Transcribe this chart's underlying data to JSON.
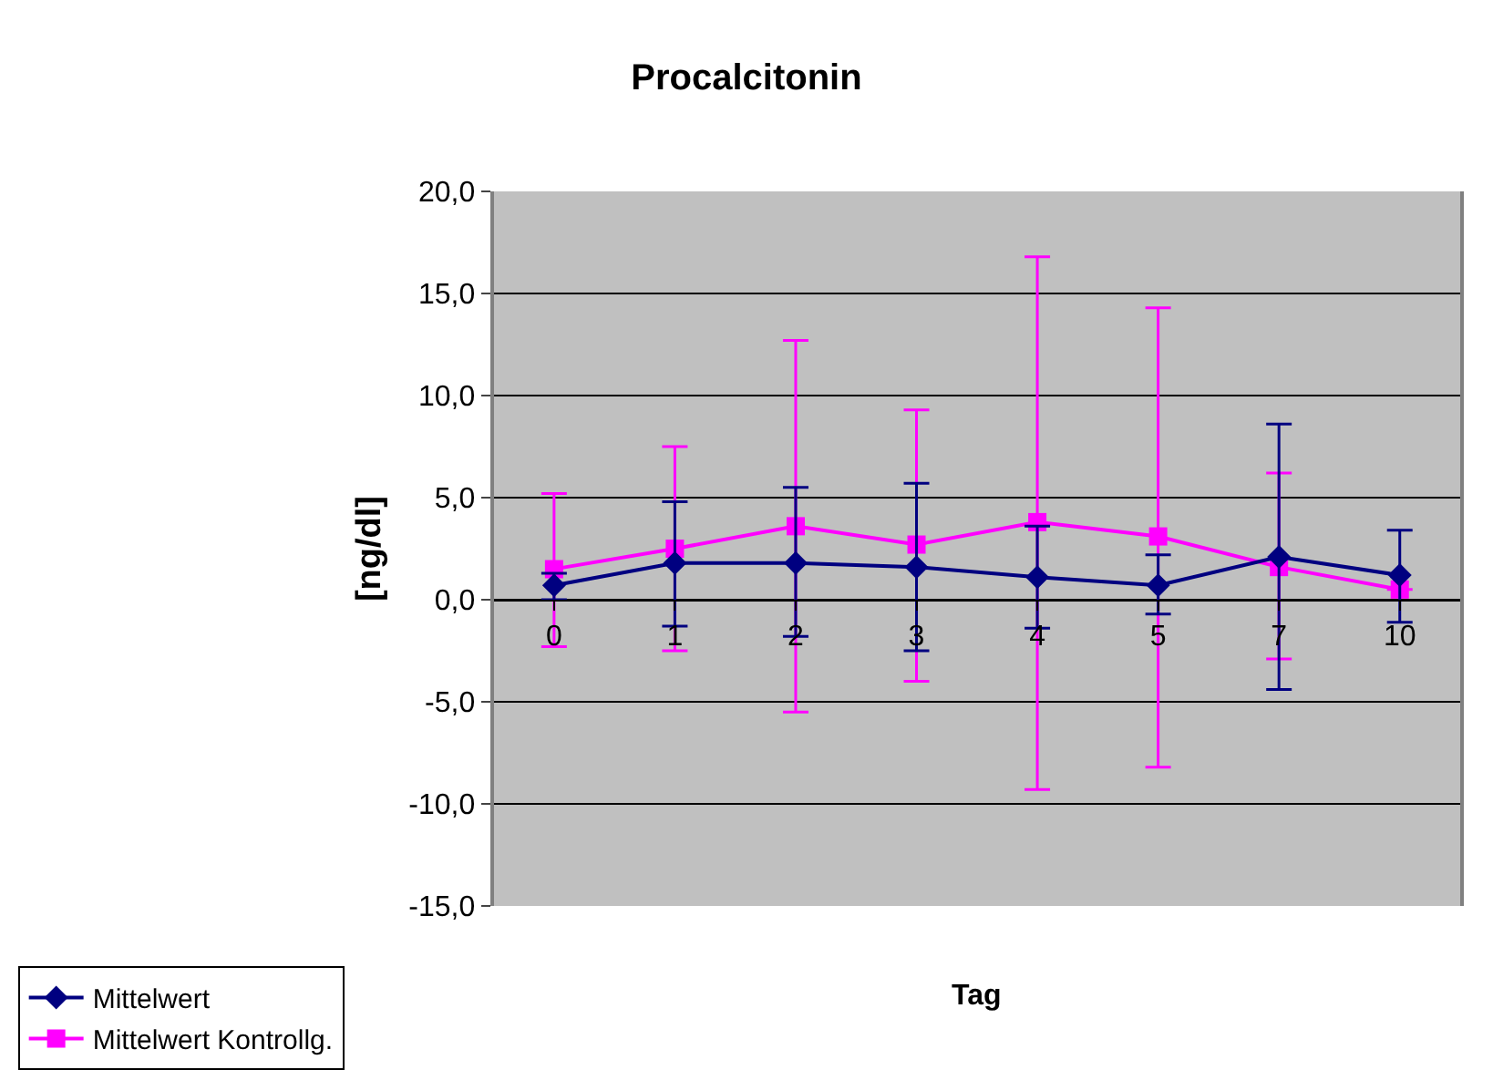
{
  "chart_data": {
    "type": "line",
    "title": "Procalcitonin",
    "xlabel": "Tag",
    "ylabel": "[ng/dl]",
    "categories": [
      "0",
      "1",
      "2",
      "3",
      "4",
      "5",
      "7",
      "10"
    ],
    "series": [
      {
        "name": "Mittelwert",
        "color": "#000080",
        "marker": "diamond",
        "values": [
          0.7,
          1.8,
          1.8,
          1.6,
          1.1,
          0.7,
          2.1,
          1.2
        ],
        "errors": [
          [
            0.0,
            1.3
          ],
          [
            -1.3,
            4.8
          ],
          [
            -1.8,
            5.5
          ],
          [
            -2.5,
            5.7
          ],
          [
            -1.4,
            3.6
          ],
          [
            -0.7,
            2.2
          ],
          [
            -4.4,
            8.6
          ],
          [
            -1.1,
            3.4
          ]
        ]
      },
      {
        "name": "Mittelwert Kontrollg.",
        "color": "#ff00ff",
        "marker": "square",
        "values": [
          1.5,
          2.5,
          3.6,
          2.7,
          3.8,
          3.1,
          1.6,
          0.5
        ],
        "errors": [
          [
            -2.3,
            5.2
          ],
          [
            -2.5,
            7.5
          ],
          [
            -5.5,
            12.7
          ],
          [
            -4.0,
            9.3
          ],
          [
            -9.3,
            16.8
          ],
          [
            -8.2,
            14.3
          ],
          [
            -2.9,
            6.2
          ],
          null
        ]
      }
    ],
    "ylim": [
      -15,
      20
    ],
    "yticks": [
      {
        "value": -15,
        "label": "-15,0"
      },
      {
        "value": -10,
        "label": "-10,0"
      },
      {
        "value": -5,
        "label": "-5,0"
      },
      {
        "value": 0,
        "label": "0,0"
      },
      {
        "value": 5,
        "label": "5,0"
      },
      {
        "value": 10,
        "label": "10,0"
      },
      {
        "value": 15,
        "label": "15,0"
      },
      {
        "value": 20,
        "label": "20,0"
      }
    ],
    "grid": "y",
    "legend": "bottom left",
    "line_style": "solid"
  }
}
